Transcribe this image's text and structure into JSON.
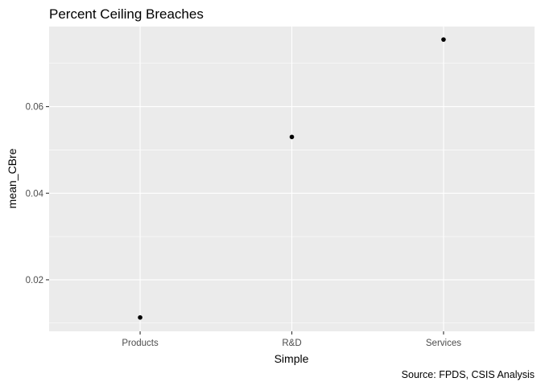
{
  "chart_data": {
    "type": "scatter",
    "title": "Percent Ceiling Breaches",
    "xlabel": "Simple",
    "ylabel": "mean_CBre",
    "caption": "Source: FPDS, CSIS Analysis",
    "categories": [
      "Products",
      "R&D",
      "Services"
    ],
    "values": [
      0.0113,
      0.053,
      0.0755
    ],
    "ylim": [
      0.0081,
      0.0785
    ],
    "yticks": [
      0.02,
      0.04,
      0.06
    ],
    "ytick_labels": [
      "0.02",
      "0.04",
      "0.06"
    ],
    "grid": true,
    "point_color": "#000000",
    "panel_color": "#ebebeb",
    "grid_color": "#ffffff"
  }
}
